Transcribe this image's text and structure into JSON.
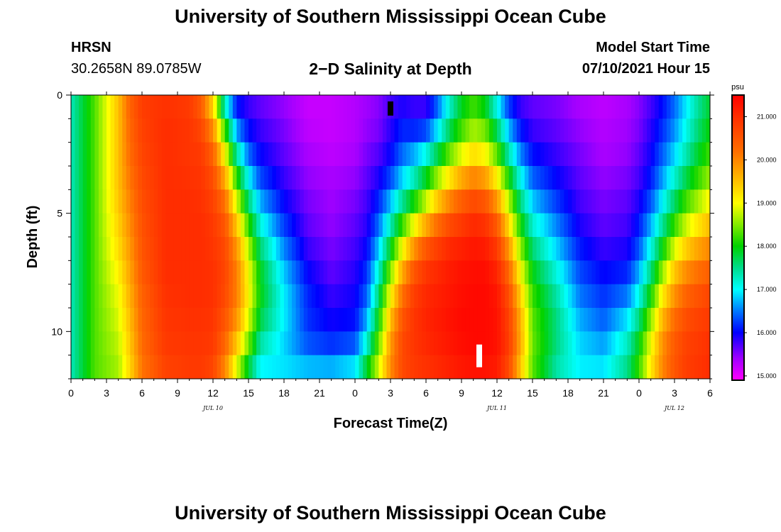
{
  "header": {
    "title": "University of Southern Mississippi Ocean Cube",
    "station": "HRSN",
    "coordinates": "30.2658N  89.0785W",
    "subtitle": "2−D Salinity at Depth",
    "model_start_label": "Model Start Time",
    "model_start_value": "07/10/2021 Hour 15"
  },
  "footer": {
    "title": "University of Southern Mississippi Ocean Cube"
  },
  "chart_data": {
    "type": "heatmap",
    "title": "2-D Salinity at Depth",
    "xlabel": "Forecast Time(Z)",
    "ylabel": "Depth (ft)",
    "x_hours": [
      0,
      54
    ],
    "xlim": [
      0,
      54
    ],
    "ylim": [
      0,
      12
    ],
    "x_tick_labels": [
      "0",
      "3",
      "6",
      "9",
      "12",
      "15",
      "18",
      "21",
      "0",
      "3",
      "6",
      "9",
      "12",
      "15",
      "18",
      "21",
      "0",
      "3",
      "6"
    ],
    "y_ticks": [
      0,
      5,
      10
    ],
    "day_labels": [
      {
        "text": "JUL 10",
        "hour": 12
      },
      {
        "text": "JUL 11",
        "hour": 36
      },
      {
        "text": "JUL 12",
        "hour": 51
      }
    ],
    "colorbar": {
      "unit": "psu",
      "range": [
        14.9,
        21.5
      ],
      "ticks": [
        "15.000",
        "16.000",
        "17.000",
        "18.000",
        "19.000",
        "20.000",
        "21.000"
      ]
    },
    "markers": [
      {
        "hour": 27,
        "depth": 0.3,
        "color": "#000000"
      },
      {
        "hour": 34.5,
        "depth": 11,
        "color": "#ffffff"
      }
    ],
    "depth_levels": [
      0,
      1,
      2,
      3,
      4,
      5,
      6,
      7,
      8,
      9,
      10,
      11,
      12
    ],
    "columns": [
      {
        "hour": 0,
        "values": [
          17.3,
          17.3,
          17.3,
          17.3,
          17.3,
          17.3,
          17.3,
          17.3,
          17.3,
          17.3,
          17.3,
          17.3,
          17.3
        ]
      },
      {
        "hour": 2,
        "values": [
          18.3,
          18.3,
          18.3,
          18.3,
          18.3,
          18.3,
          18.3,
          18.3,
          18.3,
          18.3,
          18.3,
          18.3,
          18.3
        ]
      },
      {
        "hour": 4,
        "values": [
          19.5,
          19.5,
          19.5,
          19.5,
          19.5,
          19.4,
          19.3,
          19.2,
          19.0,
          18.9,
          18.8,
          18.7,
          18.6
        ]
      },
      {
        "hour": 5,
        "values": [
          20.4,
          20.3,
          20.3,
          20.2,
          20.1,
          20.0,
          19.9,
          19.8,
          19.7,
          19.6,
          19.5,
          19.4,
          19.3
        ]
      },
      {
        "hour": 6,
        "values": [
          20.8,
          20.8,
          20.7,
          20.7,
          20.6,
          20.6,
          20.5,
          20.5,
          20.4,
          20.3,
          20.3,
          20.2,
          20.1
        ]
      },
      {
        "hour": 8,
        "values": [
          20.9,
          21.0,
          21.0,
          21.0,
          21.0,
          21.0,
          21.0,
          21.0,
          21.0,
          20.9,
          20.9,
          20.8,
          20.7
        ]
      },
      {
        "hour": 10,
        "values": [
          20.8,
          20.9,
          20.9,
          20.9,
          21.0,
          21.0,
          21.0,
          21.0,
          21.0,
          21.0,
          20.9,
          20.9,
          20.8
        ]
      },
      {
        "hour": 11,
        "values": [
          20.3,
          20.6,
          20.8,
          20.9,
          20.9,
          21.0,
          21.0,
          21.0,
          21.0,
          21.0,
          20.9,
          20.9,
          20.8
        ]
      },
      {
        "hour": 12,
        "values": [
          19.0,
          19.7,
          20.2,
          20.5,
          20.7,
          20.8,
          20.9,
          20.9,
          21.0,
          20.9,
          20.9,
          20.8,
          20.6
        ]
      },
      {
        "hour": 13,
        "values": [
          16.8,
          17.8,
          18.7,
          19.4,
          20.0,
          20.4,
          20.6,
          20.7,
          20.7,
          20.6,
          20.4,
          20.2,
          19.8
        ]
      },
      {
        "hour": 14,
        "values": [
          15.9,
          16.3,
          17.0,
          17.8,
          18.5,
          19.2,
          19.7,
          20.0,
          20.1,
          20.0,
          19.7,
          19.2,
          18.6
        ]
      },
      {
        "hour": 15,
        "values": [
          15.7,
          15.9,
          16.2,
          16.7,
          17.3,
          17.9,
          18.5,
          18.9,
          19.1,
          19.0,
          18.7,
          18.2,
          17.5
        ]
      },
      {
        "hour": 16,
        "values": [
          15.6,
          15.7,
          15.9,
          16.1,
          16.5,
          16.9,
          17.4,
          17.8,
          18.0,
          17.9,
          17.6,
          17.2,
          16.8
        ]
      },
      {
        "hour": 18,
        "values": [
          15.4,
          15.5,
          15.6,
          15.7,
          15.9,
          16.1,
          16.4,
          16.7,
          16.9,
          17.0,
          16.9,
          16.8,
          17.0
        ]
      },
      {
        "hour": 20,
        "values": [
          15.2,
          15.2,
          15.3,
          15.4,
          15.5,
          15.6,
          15.7,
          15.9,
          16.1,
          16.2,
          16.2,
          16.5,
          17.0
        ]
      },
      {
        "hour": 22,
        "values": [
          15.2,
          15.2,
          15.2,
          15.3,
          15.4,
          15.4,
          15.5,
          15.6,
          15.7,
          15.9,
          16.0,
          16.4,
          17.0
        ]
      },
      {
        "hour": 24,
        "values": [
          15.3,
          15.3,
          15.3,
          15.4,
          15.5,
          15.6,
          15.7,
          15.8,
          15.9,
          16.0,
          16.1,
          16.6,
          17.2
        ]
      },
      {
        "hour": 25,
        "values": [
          15.4,
          15.4,
          15.5,
          15.6,
          15.7,
          15.8,
          15.9,
          16.1,
          16.3,
          16.5,
          16.9,
          17.5,
          18.2
        ]
      },
      {
        "hour": 26,
        "values": [
          15.5,
          15.5,
          15.6,
          15.8,
          16.0,
          16.3,
          16.6,
          17.0,
          17.4,
          17.8,
          18.2,
          18.6,
          19.0
        ]
      },
      {
        "hour": 27,
        "values": [
          15.7,
          15.8,
          15.9,
          16.1,
          16.5,
          17.0,
          17.6,
          18.2,
          18.8,
          19.3,
          19.7,
          19.9,
          20.0
        ]
      },
      {
        "hour": 28,
        "values": [
          15.8,
          16.0,
          16.3,
          16.6,
          17.1,
          17.8,
          18.6,
          19.4,
          20.0,
          20.4,
          20.6,
          20.7,
          20.6
        ]
      },
      {
        "hour": 29,
        "values": [
          15.7,
          15.9,
          16.4,
          17.0,
          17.6,
          18.5,
          19.5,
          20.3,
          20.7,
          20.9,
          20.9,
          20.9,
          20.8
        ]
      },
      {
        "hour": 30,
        "values": [
          15.7,
          15.9,
          16.7,
          17.5,
          18.3,
          19.2,
          20.2,
          20.8,
          21.0,
          21.1,
          21.1,
          21.0,
          20.9
        ]
      },
      {
        "hour": 31,
        "values": [
          16.3,
          16.6,
          17.3,
          18.2,
          19.0,
          19.9,
          20.6,
          21.0,
          21.1,
          21.2,
          21.2,
          21.1,
          21.0
        ]
      },
      {
        "hour": 32,
        "values": [
          17.1,
          17.4,
          18.0,
          18.8,
          19.6,
          20.4,
          20.9,
          21.2,
          21.2,
          21.3,
          21.3,
          21.2,
          21.1
        ]
      },
      {
        "hour": 33,
        "values": [
          17.8,
          18.0,
          18.5,
          19.3,
          20.1,
          20.7,
          21.0,
          21.3,
          21.3,
          21.4,
          21.4,
          21.3,
          21.2
        ]
      },
      {
        "hour": 34,
        "values": [
          18.1,
          18.4,
          18.9,
          19.6,
          20.4,
          20.9,
          21.2,
          21.3,
          21.4,
          21.4,
          21.4,
          21.4,
          21.2
        ]
      },
      {
        "hour": 35,
        "values": [
          17.7,
          18.2,
          18.7,
          19.4,
          20.2,
          20.8,
          21.1,
          21.3,
          21.4,
          21.4,
          21.4,
          21.4,
          21.2
        ]
      },
      {
        "hour": 36,
        "values": [
          16.8,
          17.4,
          18.0,
          18.7,
          19.5,
          20.2,
          20.7,
          21.0,
          21.2,
          21.3,
          21.3,
          21.3,
          21.1
        ]
      },
      {
        "hour": 37,
        "values": [
          16.0,
          16.5,
          17.0,
          17.7,
          18.4,
          19.0,
          19.6,
          20.1,
          20.5,
          20.7,
          20.8,
          20.8,
          20.5
        ]
      },
      {
        "hour": 38,
        "values": [
          15.7,
          15.9,
          16.3,
          16.8,
          17.3,
          17.8,
          18.3,
          18.8,
          19.2,
          19.5,
          19.7,
          19.6,
          19.3
        ]
      },
      {
        "hour": 39,
        "values": [
          15.6,
          15.7,
          15.9,
          16.2,
          16.6,
          17.0,
          17.4,
          17.8,
          18.1,
          18.3,
          18.4,
          18.4,
          18.3
        ]
      },
      {
        "hour": 41,
        "values": [
          15.5,
          15.6,
          15.7,
          15.9,
          16.1,
          16.4,
          16.7,
          17.0,
          17.3,
          17.5,
          17.6,
          17.5,
          17.3
        ]
      },
      {
        "hour": 43,
        "values": [
          15.3,
          15.4,
          15.5,
          15.6,
          15.7,
          15.8,
          16.0,
          16.2,
          16.4,
          16.6,
          16.8,
          16.9,
          17.0
        ]
      },
      {
        "hour": 45,
        "values": [
          15.2,
          15.3,
          15.3,
          15.4,
          15.5,
          15.6,
          15.7,
          15.9,
          16.1,
          16.3,
          16.5,
          16.8,
          17.0
        ]
      },
      {
        "hour": 47,
        "values": [
          15.3,
          15.4,
          15.4,
          15.5,
          15.6,
          15.7,
          15.8,
          16.0,
          16.3,
          16.7,
          17.1,
          17.4,
          17.6
        ]
      },
      {
        "hour": 48,
        "values": [
          15.5,
          15.5,
          15.6,
          15.7,
          15.8,
          16.0,
          16.2,
          16.5,
          16.9,
          17.3,
          17.8,
          18.1,
          18.3
        ]
      },
      {
        "hour": 49,
        "values": [
          15.7,
          15.8,
          15.9,
          16.0,
          16.2,
          16.5,
          16.9,
          17.3,
          17.8,
          18.3,
          18.8,
          19.1,
          19.2
        ]
      },
      {
        "hour": 50,
        "values": [
          16.0,
          16.1,
          16.3,
          16.5,
          16.8,
          17.2,
          17.7,
          18.3,
          18.9,
          19.4,
          19.8,
          20.0,
          20.0
        ]
      },
      {
        "hour": 51,
        "values": [
          16.4,
          16.5,
          16.7,
          17.0,
          17.4,
          17.9,
          18.5,
          19.2,
          19.7,
          20.1,
          20.4,
          20.5,
          20.5
        ]
      },
      {
        "hour": 52,
        "values": [
          16.9,
          17.0,
          17.2,
          17.5,
          18.0,
          18.5,
          19.1,
          19.7,
          20.2,
          20.5,
          20.7,
          20.8,
          20.8
        ]
      },
      {
        "hour": 53,
        "values": [
          17.4,
          17.5,
          17.7,
          18.0,
          18.4,
          18.9,
          19.5,
          20.0,
          20.4,
          20.7,
          20.8,
          20.9,
          20.9
        ]
      },
      {
        "hour": 54,
        "values": [
          17.8,
          17.9,
          18.1,
          18.4,
          18.8,
          19.3,
          19.8,
          20.2,
          20.6,
          20.8,
          20.9,
          21.0,
          21.0
        ]
      }
    ]
  }
}
